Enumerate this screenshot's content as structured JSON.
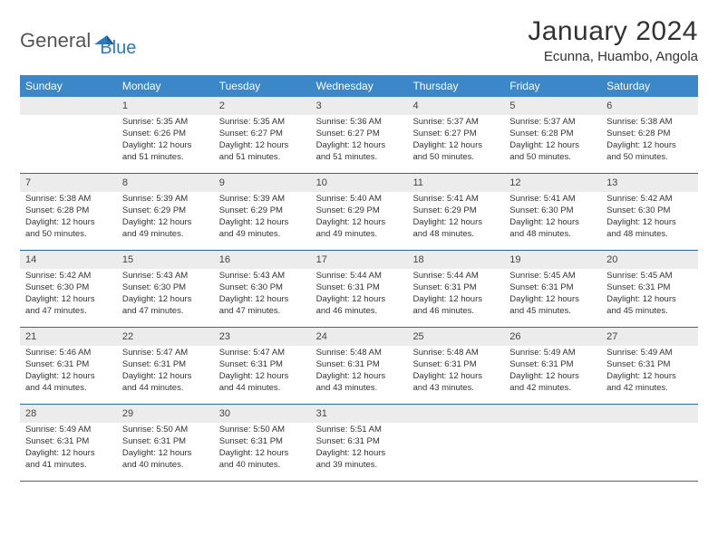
{
  "brand": {
    "name1": "General",
    "name2": "Blue"
  },
  "title": "January 2024",
  "location": "Ecunna, Huambo, Angola",
  "colors": {
    "header_bg": "#3b87c8",
    "divider": "#2b6aa3",
    "daynum_bg": "#ececec",
    "brand_blue": "#2b7bbf"
  },
  "weekdays": [
    "Sunday",
    "Monday",
    "Tuesday",
    "Wednesday",
    "Thursday",
    "Friday",
    "Saturday"
  ],
  "weeks": [
    [
      null,
      {
        "n": "1",
        "sr": "Sunrise: 5:35 AM",
        "ss": "Sunset: 6:26 PM",
        "d1": "Daylight: 12 hours",
        "d2": "and 51 minutes."
      },
      {
        "n": "2",
        "sr": "Sunrise: 5:35 AM",
        "ss": "Sunset: 6:27 PM",
        "d1": "Daylight: 12 hours",
        "d2": "and 51 minutes."
      },
      {
        "n": "3",
        "sr": "Sunrise: 5:36 AM",
        "ss": "Sunset: 6:27 PM",
        "d1": "Daylight: 12 hours",
        "d2": "and 51 minutes."
      },
      {
        "n": "4",
        "sr": "Sunrise: 5:37 AM",
        "ss": "Sunset: 6:27 PM",
        "d1": "Daylight: 12 hours",
        "d2": "and 50 minutes."
      },
      {
        "n": "5",
        "sr": "Sunrise: 5:37 AM",
        "ss": "Sunset: 6:28 PM",
        "d1": "Daylight: 12 hours",
        "d2": "and 50 minutes."
      },
      {
        "n": "6",
        "sr": "Sunrise: 5:38 AM",
        "ss": "Sunset: 6:28 PM",
        "d1": "Daylight: 12 hours",
        "d2": "and 50 minutes."
      }
    ],
    [
      {
        "n": "7",
        "sr": "Sunrise: 5:38 AM",
        "ss": "Sunset: 6:28 PM",
        "d1": "Daylight: 12 hours",
        "d2": "and 50 minutes."
      },
      {
        "n": "8",
        "sr": "Sunrise: 5:39 AM",
        "ss": "Sunset: 6:29 PM",
        "d1": "Daylight: 12 hours",
        "d2": "and 49 minutes."
      },
      {
        "n": "9",
        "sr": "Sunrise: 5:39 AM",
        "ss": "Sunset: 6:29 PM",
        "d1": "Daylight: 12 hours",
        "d2": "and 49 minutes."
      },
      {
        "n": "10",
        "sr": "Sunrise: 5:40 AM",
        "ss": "Sunset: 6:29 PM",
        "d1": "Daylight: 12 hours",
        "d2": "and 49 minutes."
      },
      {
        "n": "11",
        "sr": "Sunrise: 5:41 AM",
        "ss": "Sunset: 6:29 PM",
        "d1": "Daylight: 12 hours",
        "d2": "and 48 minutes."
      },
      {
        "n": "12",
        "sr": "Sunrise: 5:41 AM",
        "ss": "Sunset: 6:30 PM",
        "d1": "Daylight: 12 hours",
        "d2": "and 48 minutes."
      },
      {
        "n": "13",
        "sr": "Sunrise: 5:42 AM",
        "ss": "Sunset: 6:30 PM",
        "d1": "Daylight: 12 hours",
        "d2": "and 48 minutes."
      }
    ],
    [
      {
        "n": "14",
        "sr": "Sunrise: 5:42 AM",
        "ss": "Sunset: 6:30 PM",
        "d1": "Daylight: 12 hours",
        "d2": "and 47 minutes."
      },
      {
        "n": "15",
        "sr": "Sunrise: 5:43 AM",
        "ss": "Sunset: 6:30 PM",
        "d1": "Daylight: 12 hours",
        "d2": "and 47 minutes."
      },
      {
        "n": "16",
        "sr": "Sunrise: 5:43 AM",
        "ss": "Sunset: 6:30 PM",
        "d1": "Daylight: 12 hours",
        "d2": "and 47 minutes."
      },
      {
        "n": "17",
        "sr": "Sunrise: 5:44 AM",
        "ss": "Sunset: 6:31 PM",
        "d1": "Daylight: 12 hours",
        "d2": "and 46 minutes."
      },
      {
        "n": "18",
        "sr": "Sunrise: 5:44 AM",
        "ss": "Sunset: 6:31 PM",
        "d1": "Daylight: 12 hours",
        "d2": "and 46 minutes."
      },
      {
        "n": "19",
        "sr": "Sunrise: 5:45 AM",
        "ss": "Sunset: 6:31 PM",
        "d1": "Daylight: 12 hours",
        "d2": "and 45 minutes."
      },
      {
        "n": "20",
        "sr": "Sunrise: 5:45 AM",
        "ss": "Sunset: 6:31 PM",
        "d1": "Daylight: 12 hours",
        "d2": "and 45 minutes."
      }
    ],
    [
      {
        "n": "21",
        "sr": "Sunrise: 5:46 AM",
        "ss": "Sunset: 6:31 PM",
        "d1": "Daylight: 12 hours",
        "d2": "and 44 minutes."
      },
      {
        "n": "22",
        "sr": "Sunrise: 5:47 AM",
        "ss": "Sunset: 6:31 PM",
        "d1": "Daylight: 12 hours",
        "d2": "and 44 minutes."
      },
      {
        "n": "23",
        "sr": "Sunrise: 5:47 AM",
        "ss": "Sunset: 6:31 PM",
        "d1": "Daylight: 12 hours",
        "d2": "and 44 minutes."
      },
      {
        "n": "24",
        "sr": "Sunrise: 5:48 AM",
        "ss": "Sunset: 6:31 PM",
        "d1": "Daylight: 12 hours",
        "d2": "and 43 minutes."
      },
      {
        "n": "25",
        "sr": "Sunrise: 5:48 AM",
        "ss": "Sunset: 6:31 PM",
        "d1": "Daylight: 12 hours",
        "d2": "and 43 minutes."
      },
      {
        "n": "26",
        "sr": "Sunrise: 5:49 AM",
        "ss": "Sunset: 6:31 PM",
        "d1": "Daylight: 12 hours",
        "d2": "and 42 minutes."
      },
      {
        "n": "27",
        "sr": "Sunrise: 5:49 AM",
        "ss": "Sunset: 6:31 PM",
        "d1": "Daylight: 12 hours",
        "d2": "and 42 minutes."
      }
    ],
    [
      {
        "n": "28",
        "sr": "Sunrise: 5:49 AM",
        "ss": "Sunset: 6:31 PM",
        "d1": "Daylight: 12 hours",
        "d2": "and 41 minutes."
      },
      {
        "n": "29",
        "sr": "Sunrise: 5:50 AM",
        "ss": "Sunset: 6:31 PM",
        "d1": "Daylight: 12 hours",
        "d2": "and 40 minutes."
      },
      {
        "n": "30",
        "sr": "Sunrise: 5:50 AM",
        "ss": "Sunset: 6:31 PM",
        "d1": "Daylight: 12 hours",
        "d2": "and 40 minutes."
      },
      {
        "n": "31",
        "sr": "Sunrise: 5:51 AM",
        "ss": "Sunset: 6:31 PM",
        "d1": "Daylight: 12 hours",
        "d2": "and 39 minutes."
      },
      null,
      null,
      null
    ]
  ]
}
